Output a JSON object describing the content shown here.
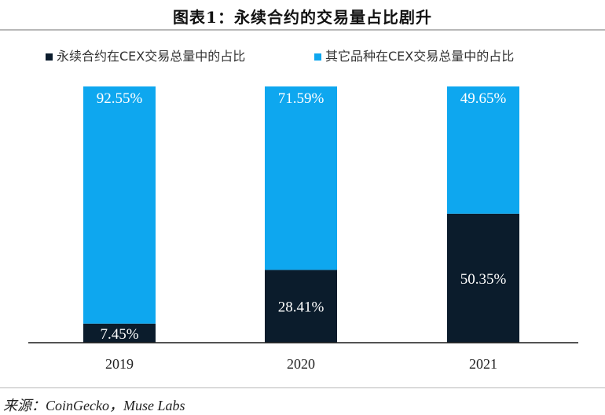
{
  "title": "图表1：永续合约的交易量占比剧升",
  "source": "来源：CoinGecko，Muse Labs",
  "colors": {
    "dark": "#0b1c2c",
    "light": "#0ea7ef"
  },
  "chart_data": {
    "type": "bar",
    "stacked": true,
    "categories": [
      "2019",
      "2020",
      "2021"
    ],
    "series": [
      {
        "name": "永续合约在CEX交易总量中的占比",
        "values": [
          7.45,
          28.41,
          50.35
        ],
        "labels": [
          "7.45%",
          "28.41%",
          "50.35%"
        ],
        "color": "#0b1c2c"
      },
      {
        "name": "其它品种在CEX交易总量中的占比",
        "values": [
          92.55,
          71.59,
          49.65
        ],
        "labels": [
          "92.55%",
          "71.59%",
          "49.65%"
        ],
        "color": "#0ea7ef"
      }
    ],
    "ylim": [
      0,
      100
    ],
    "grid": false,
    "legend_position": "top",
    "unit": "%"
  }
}
